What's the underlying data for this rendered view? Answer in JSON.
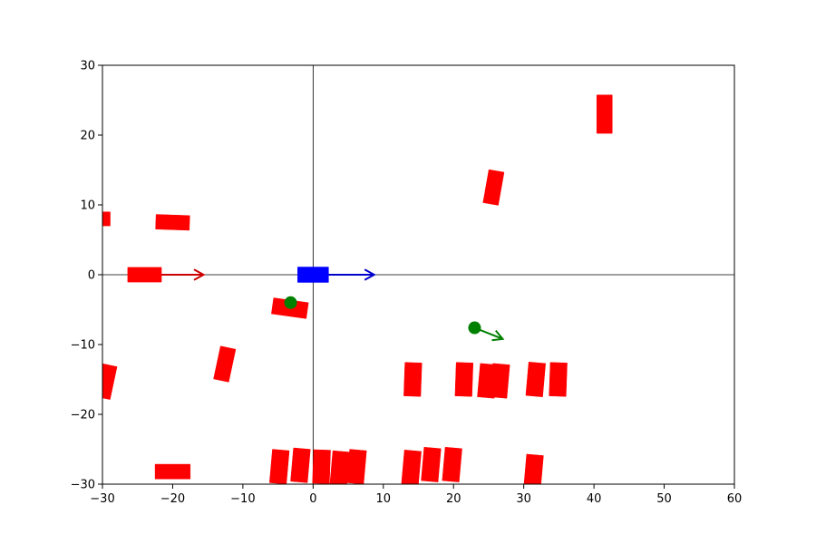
{
  "chart_data": {
    "type": "scatter",
    "title": "",
    "xlabel": "",
    "ylabel": "",
    "xlim": [
      -30,
      60
    ],
    "ylim": [
      -30,
      30
    ],
    "grid": false,
    "x_ticks": [
      -30,
      -20,
      -10,
      0,
      10,
      20,
      30,
      40,
      50,
      60
    ],
    "y_ticks": [
      -30,
      -20,
      -10,
      0,
      10,
      20,
      30
    ],
    "x_tick_labels": [
      "−30",
      "−20",
      "−10",
      "0",
      "10",
      "20",
      "30",
      "40",
      "50",
      "60"
    ],
    "y_tick_labels": [
      "−30",
      "−20",
      "−10",
      "0",
      "10",
      "20",
      "30"
    ],
    "reference_lines": {
      "x": 0,
      "y": 0
    },
    "colors": {
      "ego": "#0000ff",
      "obstacle": "#ff0000",
      "pedestrian": "#008000",
      "ego_arrow": "#0000cc",
      "obstacle_arrow": "#cc0000",
      "pedestrian_arrow": "#008000"
    },
    "ego_vehicle": {
      "x": 0,
      "y": 0,
      "length": 4.4,
      "width": 2.2,
      "heading_deg": 0,
      "arrow": {
        "dx": 6.5,
        "dy": 0
      }
    },
    "vehicles": [
      {
        "x": 41.5,
        "y": 23.0,
        "length": 5.5,
        "width": 2.2,
        "heading_deg": 90
      },
      {
        "x": 25.7,
        "y": 12.5,
        "length": 4.8,
        "width": 2.2,
        "heading_deg": 80
      },
      {
        "x": -30.0,
        "y": 8.0,
        "length": 2.2,
        "width": 2.0,
        "heading_deg": 0
      },
      {
        "x": -20.0,
        "y": 7.5,
        "length": 4.8,
        "width": 2.1,
        "heading_deg": -2
      },
      {
        "x": -24.0,
        "y": 0.0,
        "length": 4.8,
        "width": 2.1,
        "heading_deg": 0,
        "arrow": {
          "dx": 6.0,
          "dy": 0
        }
      },
      {
        "x": -3.3,
        "y": -4.8,
        "length": 5.0,
        "width": 2.3,
        "heading_deg": -8
      },
      {
        "x": -12.6,
        "y": -12.8,
        "length": 4.8,
        "width": 2.2,
        "heading_deg": 78
      },
      {
        "x": -29.5,
        "y": -15.3,
        "length": 4.8,
        "width": 2.2,
        "heading_deg": 78
      },
      {
        "x": 14.2,
        "y": -15.0,
        "length": 4.8,
        "width": 2.4,
        "heading_deg": 88
      },
      {
        "x": 21.5,
        "y": -15.0,
        "length": 4.8,
        "width": 2.4,
        "heading_deg": 88
      },
      {
        "x": 24.8,
        "y": -15.2,
        "length": 4.8,
        "width": 2.4,
        "heading_deg": 85
      },
      {
        "x": 26.6,
        "y": -15.2,
        "length": 4.8,
        "width": 2.4,
        "heading_deg": 85
      },
      {
        "x": 31.7,
        "y": -15.0,
        "length": 4.8,
        "width": 2.4,
        "heading_deg": 85
      },
      {
        "x": 34.9,
        "y": -15.0,
        "length": 4.8,
        "width": 2.4,
        "heading_deg": 88
      },
      {
        "x": -20.0,
        "y": -28.2,
        "length": 5.0,
        "width": 2.1,
        "heading_deg": 0
      },
      {
        "x": -4.8,
        "y": -27.5,
        "length": 4.8,
        "width": 2.4,
        "heading_deg": 85
      },
      {
        "x": -1.8,
        "y": -27.3,
        "length": 4.8,
        "width": 2.4,
        "heading_deg": 85
      },
      {
        "x": 1.2,
        "y": -27.5,
        "length": 4.8,
        "width": 2.4,
        "heading_deg": 88
      },
      {
        "x": 3.8,
        "y": -27.7,
        "length": 4.8,
        "width": 2.4,
        "heading_deg": 85
      },
      {
        "x": 6.2,
        "y": -27.5,
        "length": 4.8,
        "width": 2.4,
        "heading_deg": 85
      },
      {
        "x": 14.0,
        "y": -27.6,
        "length": 4.8,
        "width": 2.4,
        "heading_deg": 85
      },
      {
        "x": 16.8,
        "y": -27.2,
        "length": 4.8,
        "width": 2.4,
        "heading_deg": 85
      },
      {
        "x": 19.8,
        "y": -27.2,
        "length": 4.8,
        "width": 2.4,
        "heading_deg": 85
      },
      {
        "x": 31.4,
        "y": -28.2,
        "length": 4.8,
        "width": 2.4,
        "heading_deg": 85
      }
    ],
    "pedestrians": [
      {
        "x": -3.2,
        "y": -4.0
      },
      {
        "x": 23.0,
        "y": -7.6,
        "arrow": {
          "dx": 4.0,
          "dy": -1.6
        }
      }
    ]
  }
}
